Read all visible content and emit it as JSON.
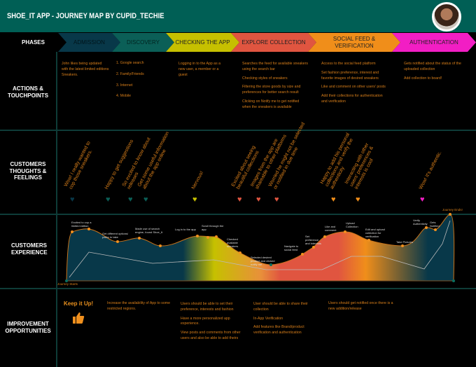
{
  "title": "SHOE_IT APP - JOURNEY MAP BY CUPID_TECHIE",
  "colors": {
    "header": "#005f55",
    "admission": "#083849",
    "discovery": "#0b5f57",
    "checking": "#c6c000",
    "explore": "#e05540",
    "social": "#f08e1a",
    "authentication": "#f21ec4",
    "text": "#d97f1a"
  },
  "phases": {
    "label": "PHASES",
    "items": [
      "ADMISSION",
      "DISCOVERY",
      "CHECKING THE APP",
      "EXPLORE COLLECTION",
      "SOCIAL FEED & VERIFICATION",
      "AUTHENTICATION"
    ]
  },
  "rows": {
    "actions": "ACTIONS & TOUCHPOINTS",
    "thoughts": "CUSTOMERS THOUGHTS & FEELINGS",
    "experience": "CUSTOMERS EXPERIENCE",
    "improvement": "IMPROVEMENT OPPORTUNITIES"
  },
  "actions": {
    "admission": [
      "John likes being updated with the latest limited editions Sneakers."
    ],
    "discovery": [
      "1.  Google search",
      "2.  Family/Friends",
      "3.  Internet",
      "4.  Mobile"
    ],
    "checking": [
      "Logging in to the App as a new user, a member or a guest"
    ],
    "explore": [
      "Searches the feed for available sneakers using the search bar",
      "Checking styles of sneakers",
      "Filtering the store goods by size and preferences for better search result",
      "Clicking on Notify me to get notified when the sneakers is available"
    ],
    "social": [
      "Access to the social feed platform",
      "Set fashion preference, interest and favorite images of desired sneakers",
      "Like and comment on other users' posts",
      "Add their collections for authentication and verification"
    ],
    "authentication": [
      "Gets notified about the status of the uploaded collection",
      "Add collection  to board!"
    ]
  },
  "thoughts": [
    {
      "text": "Wow! I really wanted to cop those sneakers.",
      "heart": "admission"
    },
    {
      "text": "Happy to get suggestions",
      "heart": "discovery"
    },
    {
      "text": "So excited to know about releases",
      "heart": "discovery"
    },
    {
      "text": "Get some useful information about the app online",
      "heart": "discovery"
    },
    {
      "text": "Nervous!",
      "heart": "checking"
    },
    {
      "text": "Excited about seeing beautiful collections",
      "heart": "explore"
    },
    {
      "text": "Images from the app are shareable to other platforms",
      "heart": "explore"
    },
    {
      "text": "Worried he might not be selected or notified in due time",
      "heart": "explore"
    },
    {
      "text": "Happy to add his personal collections and verify the authenticity",
      "heart": "social"
    },
    {
      "text": "Interacting with other users' preferences & interests is cool",
      "heart": "social"
    },
    {
      "text": "Wow! It's authentic.",
      "heart": "authentication"
    }
  ],
  "experience": {
    "start": "Journey Starts",
    "end": "Journey Ends!",
    "labels": [
      "Excited to cop a limited edition",
      "Get different options/ paths to take",
      "Made use of search engine, found Shoe_It",
      "Log in to the app",
      "Scroll through the app",
      "Checked available sneakers",
      "Selected desired product and clicked notify me",
      "Navigate to social feed",
      "Set preference and interests",
      "Like and comment",
      "Upload Collection",
      "Edit and upload collection for verification",
      "Take Pictures",
      "Verify Authenticity",
      "Gets Notified"
    ]
  },
  "improvement": {
    "badge": "Keep it Up!",
    "badge_icon": "thumbs-up-icon",
    "col1": [
      "Increase the availability of App to some restricted regions."
    ],
    "col2": [
      "Users should be able to set their preference, interests and fashion",
      "Have a more personalized app experience.",
      "View posts and comments from other users and also be able to add theirs"
    ],
    "col3": [
      "User should be able to share their collection",
      "In-App Verification",
      "Add features like Brand/product verification and authentication"
    ],
    "col4": [
      "Users should get notified once there is a new addition/release"
    ]
  }
}
